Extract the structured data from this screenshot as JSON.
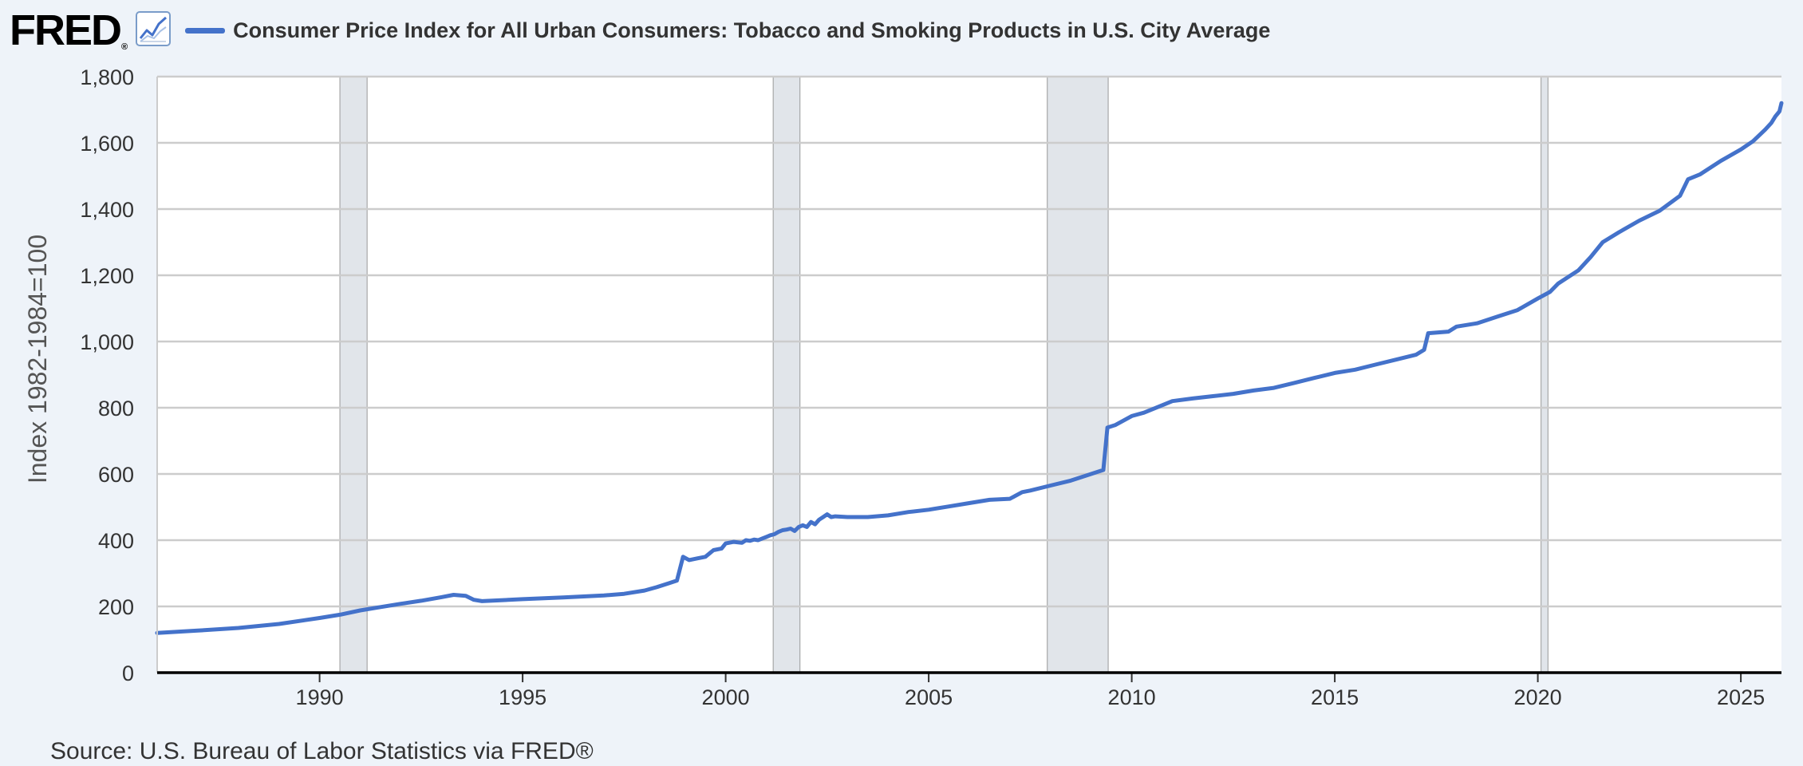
{
  "brand": {
    "logo_text": "FRED",
    "logo_mark": "®",
    "icon": "line-graph-icon"
  },
  "source_text": "Source: U.S. Bureau of Labor Statistics via FRED®",
  "chart_data": {
    "type": "line",
    "title": "Consumer Price Index for All Urban Consumers: Tobacco and Smoking Products in U.S. City Average",
    "ylabel": "Index 1982-1984=100",
    "xlabel": "",
    "xlim": [
      1986.0,
      2026.0
    ],
    "ylim": [
      0,
      1800
    ],
    "x_ticks": [
      1990,
      1995,
      2000,
      2005,
      2010,
      2015,
      2020,
      2025
    ],
    "x_tick_labels": [
      "1990",
      "1995",
      "2000",
      "2005",
      "2010",
      "2015",
      "2020",
      "2025"
    ],
    "y_ticks": [
      0,
      200,
      400,
      600,
      800,
      1000,
      1200,
      1400,
      1600,
      1800
    ],
    "y_tick_labels": [
      "0",
      "200",
      "400",
      "600",
      "800",
      "1,000",
      "1,200",
      "1,400",
      "1,600",
      "1,800"
    ],
    "grid": "horizontal",
    "recessions": [
      [
        1990.5,
        1991.17
      ],
      [
        2001.17,
        2001.83
      ],
      [
        2007.92,
        2009.42
      ],
      [
        2020.08,
        2020.25
      ]
    ],
    "colors": {
      "line": "#4472ca",
      "recession": "#e1e5ea",
      "grid": "#cccccc",
      "axis": "#000000"
    },
    "series": [
      {
        "name": "Consumer Price Index for All Urban Consumers: Tobacco and Smoking Products in U.S. City Average",
        "x": [
          1986.0,
          1987.0,
          1988.0,
          1989.0,
          1990.0,
          1990.5,
          1991.0,
          1991.5,
          1992.0,
          1992.5,
          1993.0,
          1993.3,
          1993.6,
          1993.8,
          1994.0,
          1995.0,
          1996.0,
          1997.0,
          1997.5,
          1998.0,
          1998.3,
          1998.6,
          1998.8,
          1998.95,
          1999.1,
          1999.3,
          1999.5,
          1999.7,
          1999.9,
          2000.0,
          2000.2,
          2000.4,
          2000.5,
          2000.6,
          2000.7,
          2000.8,
          2000.9,
          2001.0,
          2001.1,
          2001.2,
          2001.3,
          2001.4,
          2001.5,
          2001.6,
          2001.7,
          2001.8,
          2001.9,
          2002.0,
          2002.1,
          2002.2,
          2002.3,
          2002.4,
          2002.5,
          2002.6,
          2002.7,
          2003.0,
          2003.5,
          2004.0,
          2004.5,
          2005.0,
          2005.5,
          2006.0,
          2006.5,
          2007.0,
          2007.3,
          2007.5,
          2008.0,
          2008.5,
          2009.0,
          2009.3,
          2009.4,
          2009.6,
          2010.0,
          2010.3,
          2011.0,
          2011.5,
          2012.0,
          2012.5,
          2013.0,
          2013.5,
          2014.0,
          2014.5,
          2015.0,
          2015.5,
          2016.0,
          2016.5,
          2017.0,
          2017.2,
          2017.3,
          2017.8,
          2018.0,
          2018.5,
          2019.0,
          2019.5,
          2020.0,
          2020.3,
          2020.5,
          2021.0,
          2021.3,
          2021.6,
          2022.0,
          2022.5,
          2023.0,
          2023.5,
          2023.7,
          2024.0,
          2024.5,
          2025.0,
          2025.3,
          2025.6,
          2025.75,
          2025.85,
          2025.95,
          2026.0
        ],
        "y": [
          120,
          127,
          135,
          147,
          165,
          175,
          188,
          198,
          208,
          217,
          228,
          235,
          232,
          220,
          216,
          222,
          227,
          233,
          238,
          248,
          258,
          270,
          278,
          350,
          340,
          345,
          350,
          370,
          375,
          390,
          395,
          392,
          400,
          398,
          402,
          400,
          405,
          410,
          415,
          418,
          425,
          430,
          432,
          435,
          428,
          440,
          445,
          440,
          455,
          448,
          462,
          470,
          478,
          470,
          472,
          470,
          470,
          475,
          485,
          492,
          502,
          512,
          522,
          525,
          545,
          550,
          565,
          580,
          600,
          612,
          740,
          748,
          775,
          785,
          820,
          828,
          835,
          842,
          852,
          860,
          875,
          890,
          905,
          915,
          930,
          945,
          960,
          975,
          1025,
          1030,
          1045,
          1055,
          1075,
          1095,
          1130,
          1150,
          1175,
          1215,
          1255,
          1300,
          1330,
          1365,
          1395,
          1440,
          1490,
          1505,
          1545,
          1580,
          1605,
          1640,
          1660,
          1680,
          1695,
          1720
        ]
      }
    ]
  }
}
